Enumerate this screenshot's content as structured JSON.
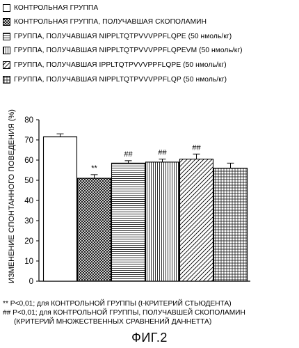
{
  "legend": [
    {
      "label": "КОНТРОЛЬНАЯ ГРУППА",
      "pattern": "white"
    },
    {
      "label": "КОНТРОЛЬНАЯ ГРУППА, ПОЛУЧАВШАЯ СКОПОЛАМИН",
      "pattern": "crosshatch"
    },
    {
      "label": "ГРУППА, ПОЛУЧАВШАЯ NIPPLTQTPVVVPPFLQPE (50 нмоль/кг)",
      "pattern": "horizontal"
    },
    {
      "label": "ГРУППА, ПОЛУЧАВШАЯ NIPPLTQTPVVVPPFLQPEVM (50 нмоль/кг)",
      "pattern": "vertical"
    },
    {
      "label": "ГРУППА, ПОЛУЧАВШАЯ IPPLTQTPVVVPPFLQPE (50 нмоль/кг)",
      "pattern": "diagonal"
    },
    {
      "label": "ГРУППА, ПОЛУЧАВШАЯ NIPPLTQTPVVVPPFLQP (50 нмоль/кг)",
      "pattern": "grid"
    }
  ],
  "chart_data": {
    "type": "bar",
    "ylabel": "ИЗМЕНЕНИЕ СПОНТАННОГО ПОВЕДЕНИЯ (%)",
    "ylim": [
      0,
      80
    ],
    "yticks": [
      0,
      10,
      20,
      30,
      40,
      50,
      60,
      70,
      80
    ],
    "grid": false,
    "legend_position": "top",
    "series": [
      {
        "value": 71.5,
        "error": 1.5,
        "annotation": "",
        "pattern": "white"
      },
      {
        "value": 51,
        "error": 1.8,
        "annotation": "**",
        "pattern": "crosshatch"
      },
      {
        "value": 58.5,
        "error": 1.2,
        "annotation": "##",
        "pattern": "horizontal"
      },
      {
        "value": 59,
        "error": 1.5,
        "annotation": "##",
        "pattern": "vertical"
      },
      {
        "value": 60.5,
        "error": 2.5,
        "annotation": "##",
        "pattern": "diagonal"
      },
      {
        "value": 56,
        "error": 2.5,
        "annotation": "",
        "pattern": "grid"
      }
    ]
  },
  "footnotes": [
    "** P<0,01; для КОНТРОЛЬНОЙ ГРУППЫ (t-КРИТЕРИЙ СТЬЮДЕНТА)",
    "## P<0,01; для КОНТРОЛЬНОЙ ГРУППЫ, ПОЛУЧАВШЕЙ СКОПОЛАМИН",
    "(КРИТЕРИЙ МНОЖЕСТВЕННЫХ СРАВНЕНИЙ ДАННЕТТА)"
  ],
  "figure_label": "ФИГ.2"
}
